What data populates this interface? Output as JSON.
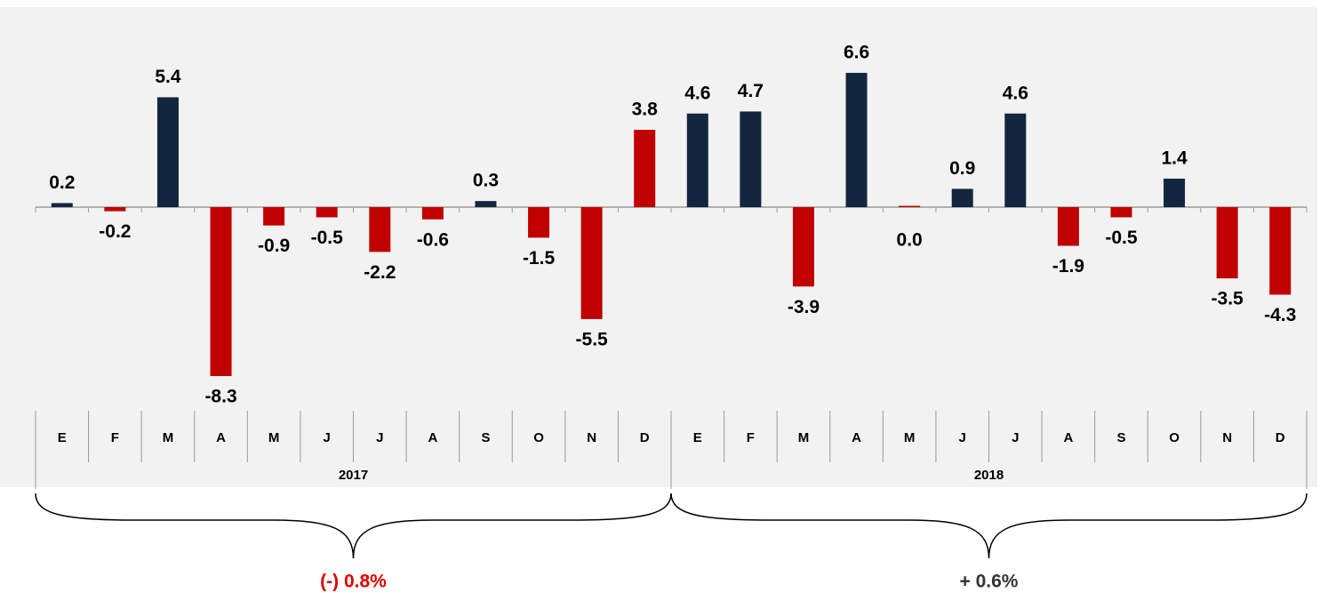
{
  "chart_data": {
    "type": "bar",
    "categories": [
      "E",
      "F",
      "M",
      "A",
      "M",
      "J",
      "J",
      "A",
      "S",
      "O",
      "N",
      "D",
      "E",
      "F",
      "M",
      "A",
      "M",
      "J",
      "J",
      "A",
      "S",
      "O",
      "N",
      "D"
    ],
    "values": [
      0.2,
      -0.2,
      5.4,
      -8.3,
      -0.9,
      -0.5,
      -2.2,
      -0.6,
      0.3,
      -1.5,
      -5.5,
      3.8,
      4.6,
      4.7,
      -3.9,
      6.6,
      0.0,
      0.9,
      4.6,
      -1.9,
      -0.5,
      1.4,
      -3.5,
      -4.3
    ],
    "value_labels": [
      "0.2",
      "-0.2",
      "5.4",
      "-8.3",
      "-0.9",
      "-0.5",
      "-2.2",
      "-0.6",
      "0.3",
      "-1.5",
      "-5.5",
      "3.8",
      "4.6",
      "4.7",
      "-3.9",
      "6.6",
      "0.0",
      "0.9",
      "4.6",
      "-1.9",
      "-0.5",
      "1.4",
      "-3.5",
      "-4.3"
    ],
    "colors": [
      "#13263f",
      "#c00000",
      "#13263f",
      "#c00000",
      "#c00000",
      "#c00000",
      "#c00000",
      "#c00000",
      "#13263f",
      "#c00000",
      "#c00000",
      "#c00000",
      "#13263f",
      "#13263f",
      "#c00000",
      "#13263f",
      "#c00000",
      "#13263f",
      "#13263f",
      "#c00000",
      "#c00000",
      "#13263f",
      "#c00000",
      "#c00000"
    ],
    "groups": [
      "2017",
      "2018"
    ],
    "annotations": [
      {
        "text": "(-) 0.8%",
        "color": "#e00000"
      },
      {
        "text": "+ 0.6%",
        "color": "#333333"
      }
    ],
    "ylim": [
      -9,
      9
    ]
  }
}
